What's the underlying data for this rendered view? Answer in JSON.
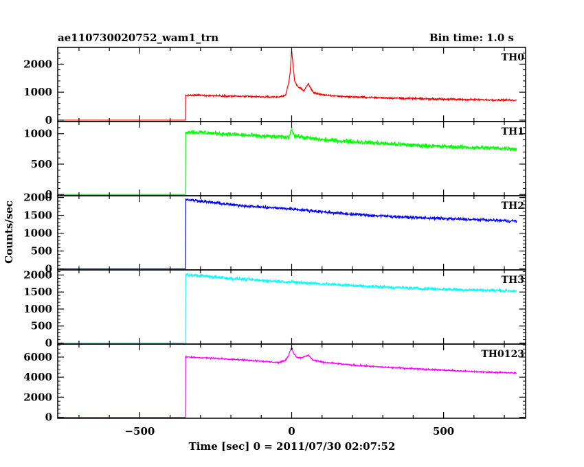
{
  "header": {
    "title": "ae110730020752_wam1_trn",
    "bin_time": "Bin time: 1.0 s"
  },
  "chart_data": {
    "type": "line",
    "xlabel": "Time [sec] 0 = 2011/07/30 02:07:52",
    "ylabel": "Counts/sec",
    "xlim": [
      -770,
      770
    ],
    "x_ticks": [
      -500,
      0,
      500
    ],
    "x_tick_labels": [
      "−500",
      "0",
      "500"
    ],
    "grid": false,
    "series": [
      {
        "name": "TH0",
        "color": "#ff0000",
        "ylim": [
          -50,
          2600
        ],
        "y_ticks": [
          0,
          1000,
          2000
        ],
        "y_tick_labels": [
          "0",
          "1000",
          "2000"
        ],
        "points": [
          [
            -750,
            0
          ],
          [
            -350,
            0
          ],
          [
            -350,
            880
          ],
          [
            -300,
            890
          ],
          [
            -200,
            860
          ],
          [
            -100,
            830
          ],
          [
            -40,
            830
          ],
          [
            -20,
            900
          ],
          [
            -10,
            1300
          ],
          [
            -5,
            1700
          ],
          [
            0,
            2500
          ],
          [
            5,
            1900
          ],
          [
            10,
            1400
          ],
          [
            20,
            1200
          ],
          [
            40,
            1050
          ],
          [
            55,
            1300
          ],
          [
            70,
            1000
          ],
          [
            100,
            900
          ],
          [
            150,
            860
          ],
          [
            200,
            830
          ],
          [
            300,
            800
          ],
          [
            400,
            770
          ],
          [
            500,
            750
          ],
          [
            600,
            730
          ],
          [
            700,
            720
          ],
          [
            740,
            710
          ]
        ],
        "noise": 30
      },
      {
        "name": "TH1",
        "color": "#00ff00",
        "ylim": [
          -20,
          1200
        ],
        "y_ticks": [
          0,
          500,
          1000
        ],
        "y_tick_labels": [
          "0",
          "500",
          "1000"
        ],
        "points": [
          [
            -750,
            0
          ],
          [
            -350,
            0
          ],
          [
            -350,
            1030
          ],
          [
            -300,
            1020
          ],
          [
            -200,
            990
          ],
          [
            -100,
            960
          ],
          [
            -10,
            940
          ],
          [
            0,
            1080
          ],
          [
            10,
            960
          ],
          [
            100,
            900
          ],
          [
            200,
            870
          ],
          [
            300,
            840
          ],
          [
            400,
            810
          ],
          [
            500,
            790
          ],
          [
            600,
            770
          ],
          [
            700,
            760
          ],
          [
            740,
            750
          ]
        ],
        "noise": 35
      },
      {
        "name": "TH2",
        "color": "#0000ff",
        "ylim": [
          -30,
          2050
        ],
        "y_ticks": [
          0,
          500,
          1000,
          1500,
          2000
        ],
        "y_tick_labels": [
          "0",
          "500",
          "1000",
          "1500",
          "2000"
        ],
        "points": [
          [
            -750,
            0
          ],
          [
            -350,
            0
          ],
          [
            -350,
            1950
          ],
          [
            -300,
            1900
          ],
          [
            -200,
            1800
          ],
          [
            -100,
            1730
          ],
          [
            0,
            1680
          ],
          [
            100,
            1600
          ],
          [
            200,
            1530
          ],
          [
            300,
            1480
          ],
          [
            400,
            1440
          ],
          [
            500,
            1410
          ],
          [
            600,
            1380
          ],
          [
            700,
            1350
          ],
          [
            740,
            1340
          ]
        ],
        "noise": 40
      },
      {
        "name": "TH3",
        "color": "#00ffff",
        "ylim": [
          -30,
          2150
        ],
        "y_ticks": [
          0,
          500,
          1000,
          1500,
          2000
        ],
        "y_tick_labels": [
          "0",
          "500",
          "1000",
          "1500",
          "2000"
        ],
        "points": [
          [
            -750,
            0
          ],
          [
            -350,
            0
          ],
          [
            -350,
            2000
          ],
          [
            -300,
            1980
          ],
          [
            -200,
            1900
          ],
          [
            -100,
            1840
          ],
          [
            0,
            1790
          ],
          [
            100,
            1740
          ],
          [
            200,
            1690
          ],
          [
            300,
            1650
          ],
          [
            400,
            1610
          ],
          [
            500,
            1580
          ],
          [
            600,
            1560
          ],
          [
            700,
            1540
          ],
          [
            740,
            1530
          ]
        ],
        "noise": 45
      },
      {
        "name": "TH0123",
        "color": "#ff00ff",
        "ylim": [
          -100,
          7300
        ],
        "y_ticks": [
          0,
          2000,
          4000,
          6000
        ],
        "y_tick_labels": [
          "0",
          "2000",
          "4000",
          "6000"
        ],
        "points": [
          [
            -750,
            0
          ],
          [
            -350,
            0
          ],
          [
            -350,
            6000
          ],
          [
            -300,
            5950
          ],
          [
            -200,
            5800
          ],
          [
            -100,
            5600
          ],
          [
            -40,
            5450
          ],
          [
            -20,
            5700
          ],
          [
            -10,
            6200
          ],
          [
            0,
            7000
          ],
          [
            5,
            6500
          ],
          [
            15,
            6000
          ],
          [
            30,
            5900
          ],
          [
            55,
            6200
          ],
          [
            70,
            5700
          ],
          [
            100,
            5500
          ],
          [
            200,
            5200
          ],
          [
            300,
            5000
          ],
          [
            400,
            4850
          ],
          [
            500,
            4700
          ],
          [
            600,
            4550
          ],
          [
            700,
            4450
          ],
          [
            740,
            4400
          ]
        ],
        "noise": 70
      }
    ]
  }
}
